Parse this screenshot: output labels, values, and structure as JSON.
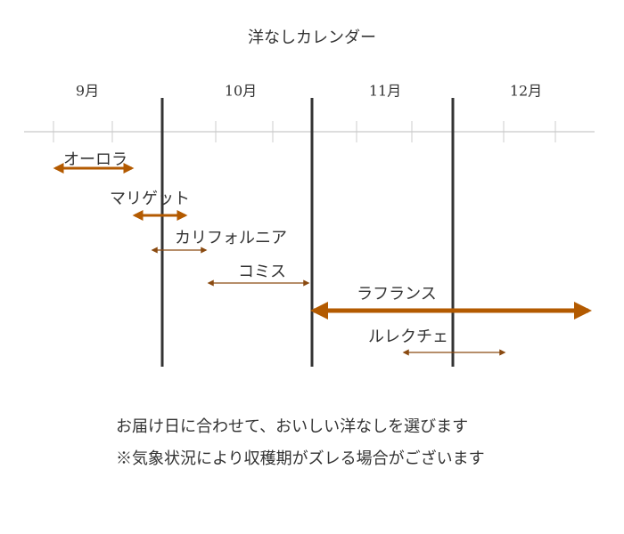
{
  "title": "洋なしカレンダー",
  "months": [
    "9月",
    "10月",
    "11月",
    "12月"
  ],
  "varieties": [
    {
      "label": "オーロラ"
    },
    {
      "label": "マリゲット"
    },
    {
      "label": "カリフォルニア"
    },
    {
      "label": "コミス"
    },
    {
      "label": "ラフランス"
    },
    {
      "label": "ルレクチェ"
    }
  ],
  "notes": [
    "お届け日に合わせて、おいしい洋なしを選びます",
    "※気象状況により収穫期がズレる場合がございます"
  ]
}
